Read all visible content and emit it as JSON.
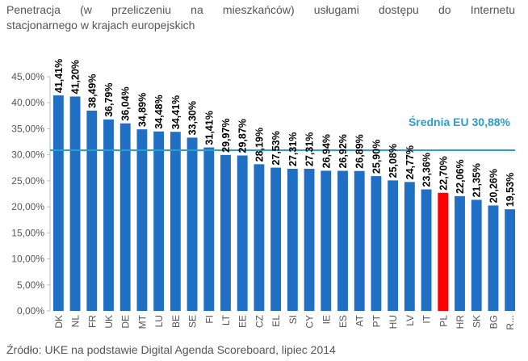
{
  "title_line1": "Penetracja (w przeliczeniu na mieszkańców) usługami dostępu do Internetu",
  "title_line2": "stacjonarnego w krajach europejskich",
  "source": "Źródło: UKE na podstawie Digital Agenda Scoreboard, lipiec 2014",
  "colors": {
    "bar": "#1f6fc5",
    "highlight": "#ff0000",
    "average": "#2a9fc8",
    "axis_text": "#555555",
    "label_text": "#000000"
  },
  "chart_data": {
    "type": "bar",
    "categories": [
      "DK",
      "NL",
      "FR",
      "UK",
      "DE",
      "MT",
      "LU",
      "BE",
      "SE",
      "FI",
      "LT",
      "EE",
      "CZ",
      "EL",
      "SI",
      "CY",
      "IE",
      "ES",
      "AT",
      "PT",
      "HU",
      "LV",
      "IT",
      "PL",
      "HR",
      "SK",
      "BG",
      "R..."
    ],
    "values": [
      41.41,
      41.2,
      38.49,
      36.79,
      36.04,
      34.89,
      34.48,
      34.41,
      33.3,
      31.41,
      29.97,
      29.87,
      28.19,
      27.53,
      27.31,
      27.31,
      26.94,
      26.92,
      26.89,
      25.9,
      25.08,
      24.77,
      23.36,
      22.7,
      22.06,
      21.35,
      20.26,
      19.53
    ],
    "value_labels": [
      "41,41%",
      "41,20%",
      "38,49%",
      "36,79%",
      "36,04%",
      "34,89%",
      "34,48%",
      "34,41%",
      "33,30%",
      "31,41%",
      "29,97%",
      "29,87%",
      "28,19%",
      "27,53%",
      "27,31%",
      "27,31%",
      "26,94%",
      "26,92%",
      "26,89%",
      "25,90%",
      "25,08%",
      "24,77%",
      "23,36%",
      "22,70%",
      "22,06%",
      "21,35%",
      "20,26%",
      "19,53%"
    ],
    "highlight_category": "PL",
    "average": {
      "value": 30.88,
      "label": "Średnia EU 30,88%"
    },
    "ylim": [
      0,
      45
    ],
    "yticks": [
      0,
      5,
      10,
      15,
      20,
      25,
      30,
      35,
      40,
      45
    ],
    "ytick_labels": [
      "0,00%",
      "5,00%",
      "10,00%",
      "15,00%",
      "20,00%",
      "25,00%",
      "30,00%",
      "35,00%",
      "40,00%",
      "45,00%"
    ],
    "grid": false,
    "legend": "none"
  }
}
